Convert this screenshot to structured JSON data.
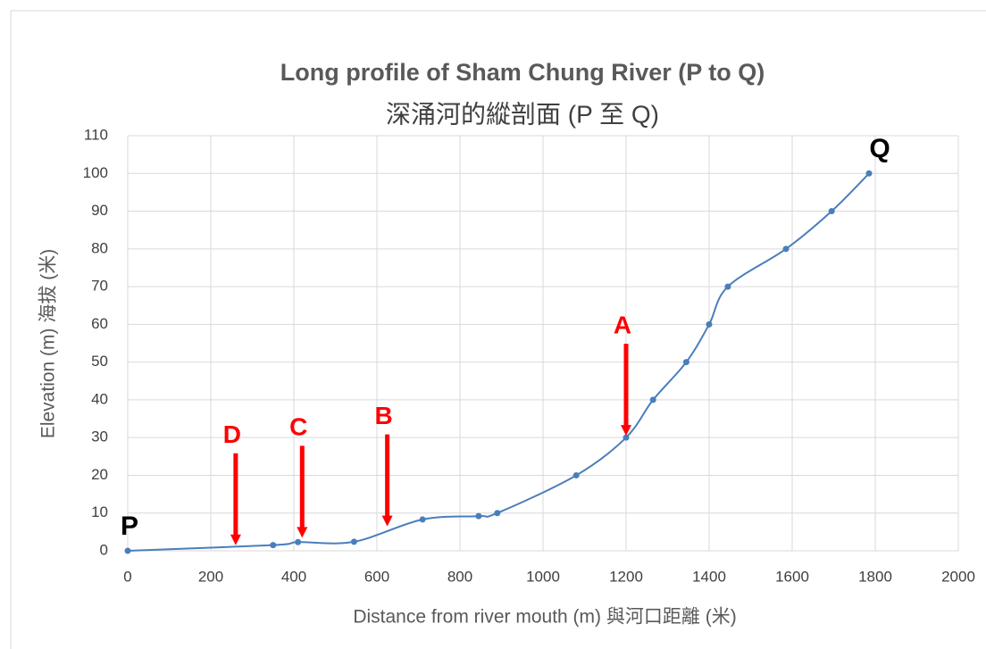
{
  "chart_data": {
    "type": "line",
    "title": "Long profile of Sham Chung River  (P to Q)",
    "subtitle": "深涌河的縱剖面 (P 至 Q)",
    "x_label": "Distance from river mouth (m) 與河口距離 (米)",
    "y_label": "Elevation (m) 海拔 (米)",
    "x": [
      0,
      350,
      410,
      545,
      710,
      845,
      890,
      1080,
      1200,
      1265,
      1345,
      1400,
      1445,
      1585,
      1695,
      1785
    ],
    "series": [
      {
        "name": "Elevation",
        "color": "#4a7ebb",
        "values": [
          0,
          1.5,
          2.3,
          2.4,
          8.3,
          9.2,
          10,
          20,
          30,
          40,
          50,
          60,
          70,
          80,
          90,
          100
        ]
      }
    ],
    "xlim": [
      0,
      2000
    ],
    "xticks": [
      0,
      200,
      400,
      600,
      800,
      1000,
      1200,
      1400,
      1600,
      1800,
      2000
    ],
    "ylim": [
      0,
      110
    ],
    "yticks": [
      0,
      10,
      20,
      30,
      40,
      50,
      60,
      70,
      80,
      90,
      100,
      110
    ],
    "grid": true,
    "annotations": [
      {
        "text": "P",
        "x": 0,
        "y": 0,
        "color": "#000000",
        "arrow": false
      },
      {
        "text": "Q",
        "x": 1785,
        "y": 100,
        "color": "#000000",
        "arrow": false
      },
      {
        "text": "A",
        "x": 1200,
        "y": 30,
        "color": "#ff0000",
        "arrow": true
      },
      {
        "text": "B",
        "x": 625,
        "y": 6,
        "color": "#ff0000",
        "arrow": true
      },
      {
        "text": "C",
        "x": 420,
        "y": 3,
        "color": "#ff0000",
        "arrow": true
      },
      {
        "text": "D",
        "x": 260,
        "y": 1,
        "color": "#ff0000",
        "arrow": true
      }
    ]
  }
}
